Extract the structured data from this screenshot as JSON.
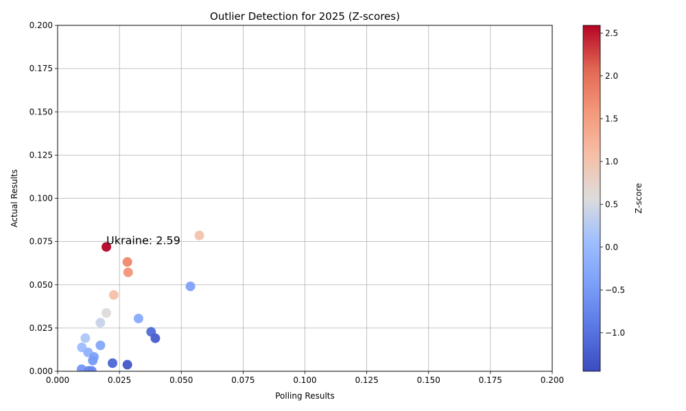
{
  "chart_data": {
    "type": "scatter",
    "title": "Outlier Detection for 2025 (Z-scores)",
    "xlabel": "Polling Results",
    "ylabel": "Actual Results",
    "xlim": [
      0.0,
      0.2
    ],
    "ylim": [
      0.0,
      0.2
    ],
    "xticks": [
      "0.000",
      "0.025",
      "0.050",
      "0.075",
      "0.100",
      "0.125",
      "0.150",
      "0.175",
      "0.200"
    ],
    "yticks": [
      "0.000",
      "0.025",
      "0.050",
      "0.075",
      "0.100",
      "0.125",
      "0.150",
      "0.175",
      "0.200"
    ],
    "grid": true,
    "colormap": "coolwarm",
    "colorbar": {
      "label": "Z-score",
      "range": [
        -1.45,
        2.59
      ],
      "ticks": [
        "−1.0",
        "−0.5",
        "0.0",
        "0.5",
        "1.0",
        "1.5",
        "2.0",
        "2.5"
      ],
      "tick_values": [
        -1.0,
        -0.5,
        0.0,
        0.5,
        1.0,
        1.5,
        2.0,
        2.5
      ]
    },
    "points": [
      {
        "x": 0.0197,
        "y": 0.0719,
        "z": 2.59
      },
      {
        "x": 0.0573,
        "y": 0.0785,
        "z": 1.0
      },
      {
        "x": 0.0282,
        "y": 0.0632,
        "z": 1.75
      },
      {
        "x": 0.0285,
        "y": 0.0572,
        "z": 1.6
      },
      {
        "x": 0.0227,
        "y": 0.0441,
        "z": 1.05
      },
      {
        "x": 0.0537,
        "y": 0.0491,
        "z": -0.4
      },
      {
        "x": 0.0197,
        "y": 0.0337,
        "z": 0.6
      },
      {
        "x": 0.0173,
        "y": 0.0281,
        "z": 0.4
      },
      {
        "x": 0.0327,
        "y": 0.0305,
        "z": -0.25
      },
      {
        "x": 0.0378,
        "y": 0.0228,
        "z": -1.1
      },
      {
        "x": 0.0395,
        "y": 0.0191,
        "z": -1.25
      },
      {
        "x": 0.0112,
        "y": 0.0192,
        "z": 0.2
      },
      {
        "x": 0.0173,
        "y": 0.015,
        "z": -0.3
      },
      {
        "x": 0.0098,
        "y": 0.0138,
        "z": 0.05
      },
      {
        "x": 0.0123,
        "y": 0.0109,
        "z": -0.15
      },
      {
        "x": 0.0147,
        "y": 0.0083,
        "z": -0.4
      },
      {
        "x": 0.0142,
        "y": 0.0062,
        "z": -0.5
      },
      {
        "x": 0.0222,
        "y": 0.0047,
        "z": -1.15
      },
      {
        "x": 0.0282,
        "y": 0.0038,
        "z": -1.35
      },
      {
        "x": 0.0097,
        "y": 0.0012,
        "z": -0.55
      },
      {
        "x": 0.0125,
        "y": 0.0003,
        "z": -0.7
      },
      {
        "x": 0.0138,
        "y": 0.0002,
        "z": -0.75
      }
    ],
    "annotation": {
      "text": "Ukraine: 2.59",
      "x": 0.0197,
      "y": 0.0719
    }
  }
}
